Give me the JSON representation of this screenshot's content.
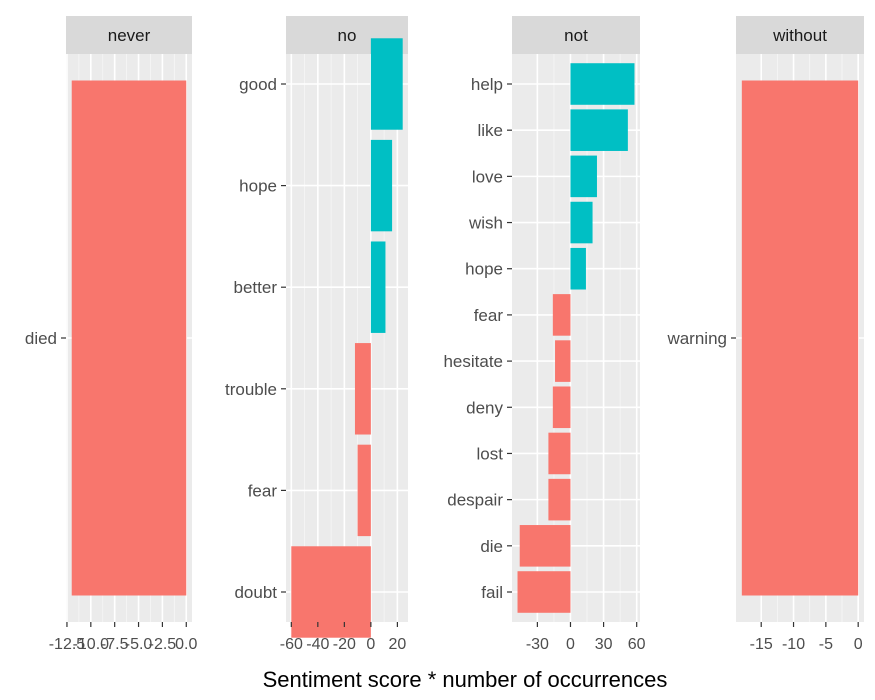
{
  "chart_data": {
    "type": "bar",
    "orientation": "horizontal",
    "facet_variable": "negation word",
    "xlabel": "Sentiment score * number of occurrences",
    "ylabel": "",
    "grid": true,
    "legend": "none",
    "colors": {
      "positive": "#00BFC4",
      "negative": "#F8766D",
      "panel_background": "#EBEBEB",
      "grid": "#ffffff",
      "strip_background": "#D9D9D9"
    },
    "facets": [
      {
        "name": "never",
        "categories": [
          "died"
        ],
        "values": [
          -12
        ],
        "xlim": [
          -12.6,
          0.6
        ],
        "xticks": [
          -12.5,
          -10.0,
          -7.5,
          -5.0,
          -2.5,
          0.0
        ],
        "xtick_labels": [
          "-12.5",
          "-10.0",
          "-7.5",
          "-5.0",
          "-2.5",
          "0.0"
        ]
      },
      {
        "name": "no",
        "categories": [
          "good",
          "hope",
          "better",
          "trouble",
          "fear",
          "doubt"
        ],
        "values": [
          24,
          16,
          11,
          -12,
          -10,
          -60
        ],
        "xlim": [
          -64,
          28
        ],
        "xticks": [
          -60,
          -40,
          -20,
          0,
          20
        ],
        "xtick_labels": [
          "-60",
          "-40",
          "-20",
          "0",
          "20"
        ]
      },
      {
        "name": "not",
        "categories": [
          "help",
          "like",
          "love",
          "wish",
          "hope",
          "fear",
          "hesitate",
          "deny",
          "lost",
          "despair",
          "die",
          "fail"
        ],
        "values": [
          58,
          52,
          24,
          20,
          14,
          -16,
          -14,
          -16,
          -20,
          -20,
          -46,
          -48
        ],
        "xlim": [
          -53,
          63
        ],
        "xticks": [
          -30,
          0,
          30,
          60
        ],
        "xtick_labels": [
          "-30",
          "0",
          "30",
          "60"
        ]
      },
      {
        "name": "without",
        "categories": [
          "warning"
        ],
        "values": [
          -18
        ],
        "xlim": [
          -18.9,
          0.9
        ],
        "xticks": [
          -15,
          -10,
          -5,
          0
        ],
        "xtick_labels": [
          "-15",
          "-10",
          "-5",
          "0"
        ]
      }
    ]
  }
}
